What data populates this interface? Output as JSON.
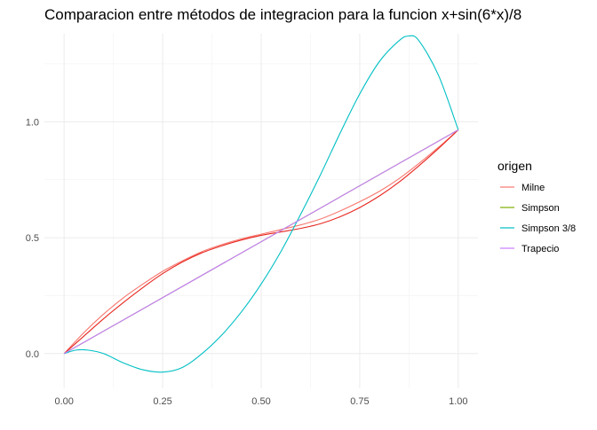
{
  "chart_data": {
    "type": "line",
    "title": "Comparacion entre métodos de integracion para la funcion x+sin(6*x)/8",
    "xlabel": "",
    "ylabel": "",
    "xlim": [
      -0.05,
      1.05
    ],
    "ylim": [
      -0.15,
      1.38
    ],
    "x_ticks": [
      0.0,
      0.25,
      0.5,
      0.75,
      1.0
    ],
    "x_tick_labels": [
      "0.00",
      "0.25",
      "0.50",
      "0.75",
      "1.00"
    ],
    "y_ticks": [
      0.0,
      0.5,
      1.0
    ],
    "y_tick_labels": [
      "0.0",
      "0.5",
      "1.0"
    ],
    "grid": true,
    "legend_position": "right",
    "legend_title": "origen",
    "series": [
      {
        "name": "Milne",
        "color": "#F8766D",
        "x": [
          0,
          0.05,
          0.1,
          0.15,
          0.2,
          0.25,
          0.3,
          0.35,
          0.4,
          0.45,
          0.5,
          0.55,
          0.6,
          0.65,
          0.7,
          0.75,
          0.8,
          0.85,
          0.9,
          0.95,
          1.0
        ],
        "values": [
          0.0,
          0.09,
          0.17,
          0.24,
          0.3,
          0.355,
          0.4,
          0.44,
          0.47,
          0.495,
          0.515,
          0.535,
          0.555,
          0.58,
          0.615,
          0.655,
          0.7,
          0.755,
          0.82,
          0.89,
          0.965
        ]
      },
      {
        "name": "Milne",
        "color": "#E7261F",
        "x": [
          0,
          0.05,
          0.1,
          0.15,
          0.2,
          0.25,
          0.3,
          0.35,
          0.4,
          0.45,
          0.5,
          0.55,
          0.6,
          0.65,
          0.7,
          0.75,
          0.8,
          0.85,
          0.9,
          0.95,
          1.0
        ],
        "values": [
          0.0,
          0.075,
          0.15,
          0.22,
          0.285,
          0.345,
          0.395,
          0.435,
          0.465,
          0.49,
          0.51,
          0.525,
          0.54,
          0.56,
          0.59,
          0.63,
          0.68,
          0.74,
          0.81,
          0.885,
          0.965
        ]
      },
      {
        "name": "Simpson",
        "color": "#7CAE00",
        "x": [
          0,
          1.0
        ],
        "values": [
          0.0,
          0.965
        ]
      },
      {
        "name": "Simpson 3/8",
        "color": "#00BFC4",
        "x": [
          0,
          0.03,
          0.06,
          0.1,
          0.15,
          0.2,
          0.25,
          0.3,
          0.35,
          0.4,
          0.45,
          0.5,
          0.55,
          0.6,
          0.65,
          0.7,
          0.75,
          0.8,
          0.85,
          0.875,
          0.9,
          0.95,
          1.0
        ],
        "values": [
          0.0,
          0.015,
          0.015,
          0.0,
          -0.04,
          -0.07,
          -0.08,
          -0.06,
          0.0,
          0.08,
          0.18,
          0.3,
          0.44,
          0.6,
          0.77,
          0.95,
          1.12,
          1.26,
          1.35,
          1.37,
          1.35,
          1.2,
          0.965
        ]
      },
      {
        "name": "Trapecio",
        "color": "#C77CFF",
        "x": [
          0,
          1.0
        ],
        "values": [
          0.0,
          0.965
        ]
      }
    ],
    "legend_entries": [
      {
        "name": "Milne",
        "color": "#F8766D"
      },
      {
        "name": "Simpson",
        "color": "#7CAE00"
      },
      {
        "name": "Simpson 3/8",
        "color": "#00BFC4"
      },
      {
        "name": "Trapecio",
        "color": "#C77CFF"
      }
    ]
  }
}
